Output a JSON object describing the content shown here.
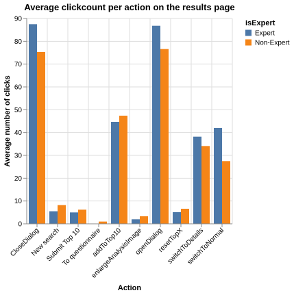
{
  "chart_data": {
    "type": "bar",
    "title": "Average clickcount per action on the results page",
    "xlabel": "Action",
    "ylabel": "Average number of clicks",
    "ylim": [
      0,
      90
    ],
    "yticks": [
      0,
      10,
      20,
      30,
      40,
      50,
      60,
      70,
      80,
      90
    ],
    "grid": true,
    "legend": {
      "title": "isExpert",
      "position": "top-right"
    },
    "categories": [
      "CloseDialog",
      "New search",
      "Submit Top 10",
      "To questionnaire",
      "addToTop10",
      "enlargeAnalysisImage",
      "openDialog",
      "resetTopX",
      "switchToDetails",
      "switchToNormal"
    ],
    "series": [
      {
        "name": "Expert",
        "color": "#4c78a8",
        "values": [
          87.5,
          5.5,
          5.0,
          0,
          44.7,
          2.0,
          86.8,
          5.1,
          38.2,
          42.0
        ]
      },
      {
        "name": "Non-Expert",
        "color": "#f58518",
        "values": [
          75.3,
          8.2,
          6.2,
          1.0,
          47.4,
          3.3,
          76.6,
          6.6,
          34.1,
          27.5
        ]
      }
    ]
  }
}
